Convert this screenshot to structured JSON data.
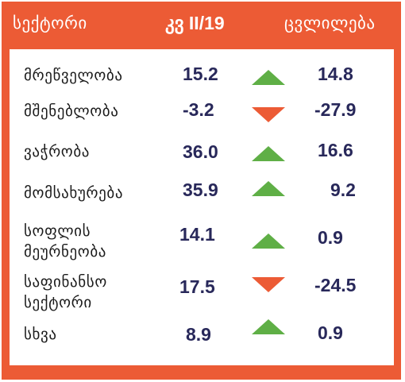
{
  "header": {
    "sector": "სექტორი",
    "quarter": "კვ II/19",
    "change": "ცვლილება"
  },
  "colors": {
    "frame": "#ec5b35",
    "up_arrow": "#5faf46",
    "down_arrow": "#ec5b35",
    "value_text": "#28285a"
  },
  "rows": [
    {
      "sector": "მრეწველობა",
      "value": "15.2",
      "direction": "up",
      "change": "14.8"
    },
    {
      "sector": "მშენებლობა",
      "value": "-3.2",
      "direction": "down",
      "change": "-27.9"
    },
    {
      "sector": "ვაჭრობა",
      "value": "36.0",
      "direction": "up",
      "change": "16.6"
    },
    {
      "sector": "მომსახურება",
      "value": "35.9",
      "direction": "up",
      "change": "9.2"
    },
    {
      "sector": "სოფლის\nმეურნეობა",
      "value": "14.1",
      "direction": "up",
      "change": "0.9"
    },
    {
      "sector": "საფინანსო\nსექტორი",
      "value": "17.5",
      "direction": "down",
      "change": "-24.5"
    },
    {
      "sector": "სხვა",
      "value": "8.9",
      "direction": "up",
      "change": "0.9"
    }
  ]
}
